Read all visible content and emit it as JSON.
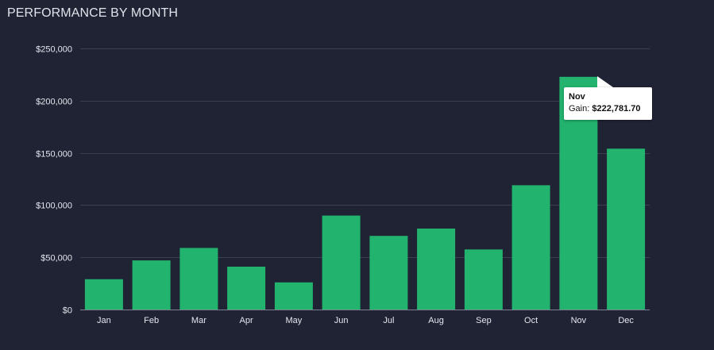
{
  "header": {
    "title": "PERFORMANCE BY MONTH"
  },
  "colors": {
    "background": "#1f2334",
    "bar": "#22b36e",
    "grid": "#3a3f52",
    "axis": "#7d8293",
    "label": "#e4e7ee"
  },
  "chart_data": {
    "type": "bar",
    "title": "PERFORMANCE BY MONTH",
    "xlabel": "",
    "ylabel": "",
    "categories": [
      "Jan",
      "Feb",
      "Mar",
      "Apr",
      "May",
      "Jun",
      "Jul",
      "Aug",
      "Sep",
      "Oct",
      "Nov",
      "Dec"
    ],
    "series": [
      {
        "values": [
          29000,
          47000,
          59000,
          41000,
          26000,
          90000,
          70500,
          77500,
          57500,
          119000,
          222781.7,
          154000
        ]
      }
    ],
    "ylim": [
      0,
      250000
    ],
    "yticks": [
      0,
      50000,
      100000,
      150000,
      200000,
      250000
    ],
    "ytick_labels": [
      "$0",
      "$50,000",
      "$100,000",
      "$150,000",
      "$200,000",
      "$250,000"
    ],
    "grid": true,
    "legend": "none"
  },
  "tooltip": {
    "category": "Nov",
    "label": "Gain: ",
    "value": "$222,781.70"
  }
}
